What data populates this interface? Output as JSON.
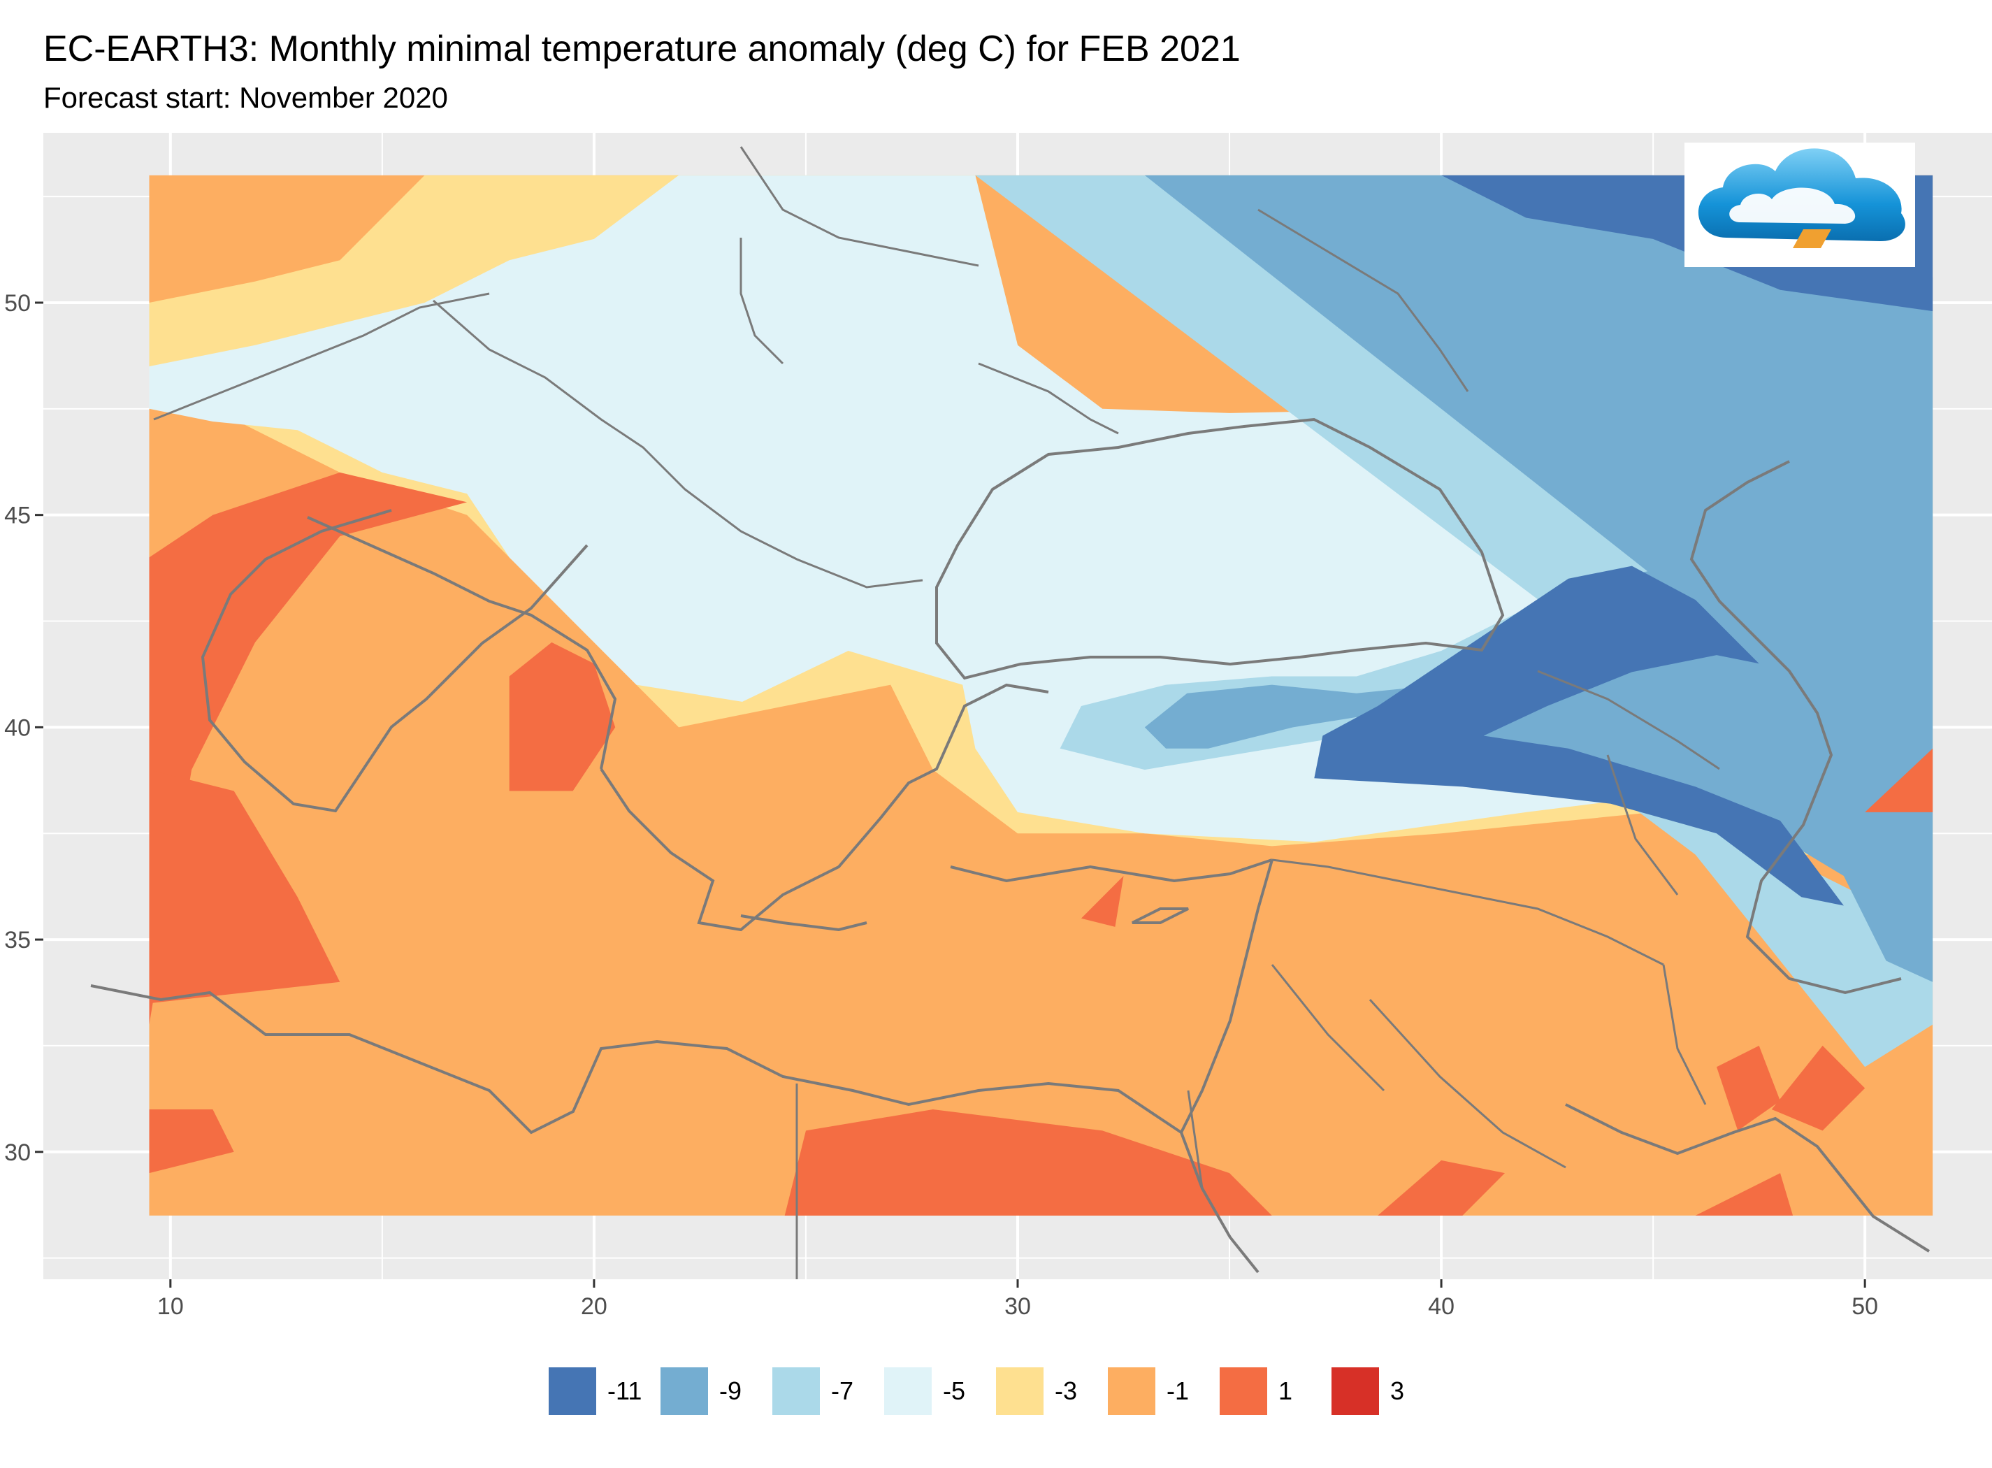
{
  "title": "EC-EARTH3: Monthly minimal temperature anomaly (deg C) for FEB 2021",
  "subtitle": "Forecast start: November 2020",
  "chart_data": {
    "type": "heatmap",
    "map_region": {
      "lon_range": [
        7,
        53
      ],
      "lat_range": [
        27,
        54
      ]
    },
    "data_extent": {
      "lon": [
        9.5,
        51.6
      ],
      "lat": [
        28.5,
        53.0
      ]
    },
    "x_ticks": [
      10,
      20,
      30,
      40,
      50
    ],
    "y_ticks": [
      30,
      35,
      40,
      45,
      50
    ],
    "grid": true,
    "legend_position": "bottom",
    "legend": [
      {
        "label": "-11",
        "color": "#4575b4"
      },
      {
        "label": "-9",
        "color": "#74add1"
      },
      {
        "label": "-7",
        "color": "#abd9e9"
      },
      {
        "label": "-5",
        "color": "#e0f3f8"
      },
      {
        "label": "-3",
        "color": "#fee090"
      },
      {
        "label": "-1",
        "color": "#fdae61"
      },
      {
        "label": "1",
        "color": "#f46d43"
      },
      {
        "label": "3",
        "color": "#d73027"
      }
    ],
    "regions": [
      {
        "level": "-1",
        "polygon": [
          [
            9.5,
            28.5
          ],
          [
            51.6,
            28.5
          ],
          [
            51.6,
            53
          ],
          [
            9.5,
            53
          ]
        ]
      },
      {
        "level": "-3",
        "polygon": [
          [
            16,
            53
          ],
          [
            29,
            53
          ],
          [
            30,
            49
          ],
          [
            31,
            46.5
          ],
          [
            35,
            46.8
          ],
          [
            40,
            47
          ],
          [
            44,
            45.5
          ],
          [
            46,
            44
          ],
          [
            48.5,
            45
          ],
          [
            49,
            47
          ],
          [
            51.6,
            47.5
          ],
          [
            51.6,
            37
          ],
          [
            48,
            37
          ],
          [
            45,
            38
          ],
          [
            40,
            37.5
          ],
          [
            36,
            37.2
          ],
          [
            33,
            37.5
          ],
          [
            30,
            37.5
          ],
          [
            28,
            39
          ],
          [
            27,
            41
          ],
          [
            24.5,
            40.5
          ],
          [
            22,
            40
          ],
          [
            20.5,
            41.5
          ],
          [
            18.5,
            43.5
          ],
          [
            17,
            45
          ],
          [
            14,
            46
          ],
          [
            11,
            47.5
          ],
          [
            9.5,
            48
          ],
          [
            9.5,
            50
          ],
          [
            12,
            50.5
          ],
          [
            14,
            51
          ],
          [
            16,
            53
          ]
        ]
      },
      {
        "level": "-5",
        "polygon": [
          [
            22,
            53
          ],
          [
            29,
            53
          ],
          [
            30,
            49
          ],
          [
            32,
            47.5
          ],
          [
            35,
            47.4
          ],
          [
            40,
            47.5
          ],
          [
            44,
            47.4
          ],
          [
            46,
            46.5
          ],
          [
            48.5,
            47
          ],
          [
            51.6,
            48
          ],
          [
            51.6,
            37.5
          ],
          [
            49,
            37.5
          ],
          [
            46,
            38.5
          ],
          [
            42,
            38
          ],
          [
            37,
            37.3
          ],
          [
            33,
            37.5
          ],
          [
            30,
            38
          ],
          [
            29,
            39.5
          ],
          [
            28.7,
            41
          ],
          [
            26,
            41.8
          ],
          [
            23.5,
            40.6
          ],
          [
            21,
            41
          ],
          [
            20,
            42
          ],
          [
            18,
            44
          ],
          [
            17,
            45.5
          ],
          [
            15,
            46
          ],
          [
            13,
            47
          ],
          [
            11,
            47.2
          ],
          [
            9.5,
            47.5
          ],
          [
            9.5,
            48.5
          ],
          [
            12,
            49
          ],
          [
            14,
            49.5
          ],
          [
            16,
            50
          ],
          [
            18,
            51
          ],
          [
            20,
            51.5
          ],
          [
            22,
            53
          ]
        ]
      },
      {
        "level": "-7",
        "polygon": [
          [
            29,
            53
          ],
          [
            40,
            53
          ],
          [
            41,
            51
          ],
          [
            44,
            50
          ],
          [
            48,
            49.5
          ],
          [
            51.6,
            49.5
          ],
          [
            51.6,
            33
          ],
          [
            50,
            32
          ],
          [
            48,
            34.5
          ],
          [
            46,
            37
          ],
          [
            44,
            38.5
          ],
          [
            41,
            39.5
          ],
          [
            39,
            40
          ],
          [
            36,
            39.5
          ],
          [
            33,
            39
          ],
          [
            31,
            39.5
          ],
          [
            31.5,
            40.5
          ],
          [
            33.5,
            41
          ],
          [
            36,
            41.2
          ],
          [
            38,
            41.2
          ],
          [
            40,
            41.8
          ],
          [
            42,
            42.8
          ],
          [
            44,
            44
          ],
          [
            45.5,
            44
          ],
          [
            46.5,
            43
          ],
          [
            47,
            42
          ],
          [
            44,
            41
          ],
          [
            42,
            40
          ],
          [
            46,
            38.5
          ],
          [
            48,
            37
          ],
          [
            50,
            36
          ],
          [
            51.6,
            36
          ]
        ]
      },
      {
        "level": "-9",
        "polygon": [
          [
            33,
            53
          ],
          [
            45,
            53
          ],
          [
            48,
            51
          ],
          [
            51.6,
            50.6
          ],
          [
            51.6,
            34
          ],
          [
            50.5,
            34.5
          ],
          [
            49.5,
            36.5
          ],
          [
            47,
            38
          ],
          [
            44,
            39
          ],
          [
            41,
            39.8
          ],
          [
            39,
            40.4
          ],
          [
            36.5,
            40
          ],
          [
            34.5,
            39.5
          ],
          [
            33.5,
            39.5
          ],
          [
            33,
            40
          ],
          [
            34,
            40.8
          ],
          [
            36,
            41
          ],
          [
            38,
            40.8
          ],
          [
            40,
            41
          ],
          [
            42,
            42.2
          ],
          [
            44,
            43.5
          ],
          [
            45.5,
            43.8
          ],
          [
            46.5,
            43
          ],
          [
            47,
            42
          ]
        ]
      },
      {
        "level": "-11",
        "polygon": [
          [
            40,
            53
          ],
          [
            51.6,
            53
          ],
          [
            51.6,
            49.8
          ],
          [
            48,
            50.3
          ],
          [
            45,
            51.5
          ],
          [
            42,
            52
          ]
        ]
      },
      {
        "level": "-11",
        "polygon": [
          [
            37,
            38.8
          ],
          [
            40.5,
            38.6
          ],
          [
            44,
            38.2
          ],
          [
            46.5,
            37.5
          ],
          [
            48.5,
            36
          ],
          [
            49.5,
            35.8
          ],
          [
            48,
            37.8
          ],
          [
            46,
            38.6
          ],
          [
            43,
            39.5
          ],
          [
            41,
            39.8
          ],
          [
            42.5,
            40.5
          ],
          [
            44.5,
            41.3
          ],
          [
            46.5,
            41.7
          ],
          [
            47.5,
            41.5
          ],
          [
            46,
            43
          ],
          [
            44.5,
            43.8
          ],
          [
            43,
            43.5
          ],
          [
            41.5,
            42.5
          ],
          [
            40,
            41.5
          ],
          [
            38.5,
            40.5
          ],
          [
            37.2,
            39.8
          ]
        ]
      },
      {
        "level": "1",
        "polygon": [
          [
            9.5,
            33
          ],
          [
            10,
            36
          ],
          [
            10.5,
            39
          ],
          [
            12,
            42
          ],
          [
            14,
            44.5
          ],
          [
            17,
            45.3
          ],
          [
            14,
            46
          ],
          [
            11,
            45
          ],
          [
            9.5,
            44
          ]
        ]
      },
      {
        "level": "1",
        "polygon": [
          [
            9.5,
            33.5
          ],
          [
            14,
            34
          ],
          [
            13,
            36
          ],
          [
            11.5,
            38.5
          ],
          [
            9.5,
            39
          ]
        ]
      },
      {
        "level": "1",
        "polygon": [
          [
            18,
            41.2
          ],
          [
            19,
            42
          ],
          [
            20,
            41.5
          ],
          [
            20.5,
            40
          ],
          [
            19.5,
            38.5
          ],
          [
            18,
            38.5
          ]
        ]
      },
      {
        "level": "1",
        "polygon": [
          [
            24.5,
            28.5
          ],
          [
            36,
            28.5
          ],
          [
            35,
            29.5
          ],
          [
            32,
            30.5
          ],
          [
            28,
            31
          ],
          [
            25,
            30.5
          ]
        ]
      },
      {
        "level": "1",
        "polygon": [
          [
            38.5,
            28.5
          ],
          [
            40,
            29.8
          ],
          [
            41.5,
            29.5
          ],
          [
            40.5,
            28.5
          ]
        ]
      },
      {
        "level": "1",
        "polygon": [
          [
            46,
            28.5
          ],
          [
            48.3,
            28.5
          ],
          [
            48,
            29.5
          ]
        ]
      },
      {
        "level": "1",
        "polygon": [
          [
            47.8,
            31
          ],
          [
            49,
            32.5
          ],
          [
            50,
            31.5
          ],
          [
            49,
            30.5
          ]
        ]
      },
      {
        "level": "1",
        "polygon": [
          [
            50,
            38
          ],
          [
            51.6,
            39.5
          ],
          [
            51.6,
            38
          ]
        ]
      },
      {
        "level": "1",
        "polygon": [
          [
            31.5,
            35.5
          ],
          [
            32.5,
            36.5
          ],
          [
            32.3,
            35.3
          ]
        ]
      },
      {
        "level": "1",
        "polygon": [
          [
            9.5,
            29.5
          ],
          [
            11.5,
            30
          ],
          [
            11,
            31
          ],
          [
            9.5,
            31
          ]
        ]
      },
      {
        "level": "1",
        "polygon": [
          [
            47,
            30.5
          ],
          [
            48,
            31.2
          ],
          [
            47.5,
            32.5
          ],
          [
            46.5,
            32
          ]
        ]
      }
    ]
  },
  "logo_icon": "cloud-logo-icon"
}
